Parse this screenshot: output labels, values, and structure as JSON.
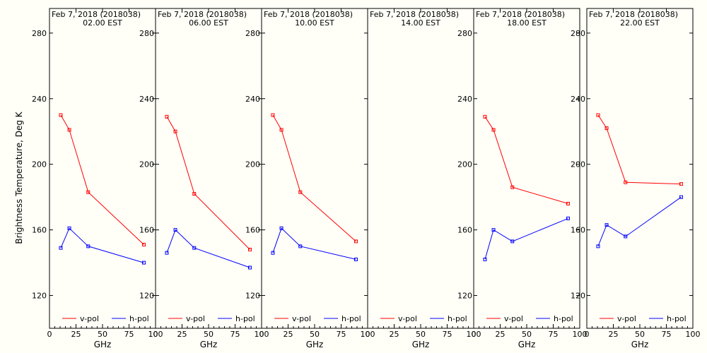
{
  "figure": {
    "ylabel": "Brightness Temperature, Deg K",
    "background": "#fffff8",
    "axis_color": "#000000"
  },
  "series_colors": {
    "v-pol": "#ff0000",
    "h-pol": "#0000ff"
  },
  "chart_data": [
    {
      "type": "line",
      "title": "Feb  7, 2018 (2018038)",
      "subtitle": "02.00 EST",
      "xlabel": "GHz",
      "xlim": [
        0,
        100
      ],
      "ylim": [
        100,
        295
      ],
      "xticks": [
        0,
        25,
        50,
        75,
        100
      ],
      "yticks": [
        120,
        160,
        200,
        240,
        280
      ],
      "ytick_side": "left",
      "legend": "bottom",
      "series": [
        {
          "name": "v-pol",
          "x": [
            10.65,
            18.7,
            36.5,
            89.0
          ],
          "y": [
            230,
            221,
            183,
            151
          ]
        },
        {
          "name": "h-pol",
          "x": [
            10.65,
            18.7,
            36.5,
            89.0
          ],
          "y": [
            149,
            161,
            150,
            140
          ]
        }
      ]
    },
    {
      "type": "line",
      "title": "Feb  7, 2018 (2018038)",
      "subtitle": "06.00 EST",
      "xlabel": "GHz",
      "xlim": [
        0,
        100
      ],
      "ylim": [
        100,
        295
      ],
      "xticks": [
        0,
        25,
        50,
        75,
        100
      ],
      "yticks": [
        120,
        160,
        200,
        240,
        280
      ],
      "ytick_side": "right",
      "legend": "bottom",
      "series": [
        {
          "name": "v-pol",
          "x": [
            10.65,
            18.7,
            36.5,
            89.0
          ],
          "y": [
            229,
            220,
            182,
            148
          ]
        },
        {
          "name": "h-pol",
          "x": [
            10.65,
            18.7,
            36.5,
            89.0
          ],
          "y": [
            146,
            160,
            149,
            137
          ]
        }
      ]
    },
    {
      "type": "line",
      "title": "Feb  7, 2018 (2018038)",
      "subtitle": "10.00 EST",
      "xlabel": "GHz",
      "xlim": [
        0,
        100
      ],
      "ylim": [
        100,
        295
      ],
      "xticks": [
        0,
        25,
        50,
        75,
        100
      ],
      "yticks": [
        120,
        160,
        200,
        240,
        280
      ],
      "ytick_side": "right",
      "legend": "bottom",
      "series": [
        {
          "name": "v-pol",
          "x": [
            10.65,
            18.7,
            36.5,
            89.0
          ],
          "y": [
            230,
            221,
            183,
            153
          ]
        },
        {
          "name": "h-pol",
          "x": [
            10.65,
            18.7,
            36.5,
            89.0
          ],
          "y": [
            146,
            161,
            150,
            142
          ]
        }
      ]
    },
    {
      "type": "line",
      "title": "Feb  7, 2018 (2018038)",
      "subtitle": "14.00 EST",
      "xlabel": "GHz",
      "xlim": [
        0,
        100
      ],
      "ylim": [
        100,
        295
      ],
      "xticks": [
        0,
        25,
        50,
        75,
        100
      ],
      "yticks": [],
      "ytick_side": "none",
      "legend": "bottom",
      "series": [
        {
          "name": "v-pol",
          "x": [],
          "y": []
        },
        {
          "name": "h-pol",
          "x": [],
          "y": []
        }
      ]
    },
    {
      "type": "line",
      "title": "Feb  7, 2018 (2018038)",
      "subtitle": "18.00 EST",
      "xlabel": "GHz",
      "xlim": [
        0,
        100
      ],
      "ylim": [
        100,
        295
      ],
      "xticks": [
        0,
        25,
        50,
        75,
        100
      ],
      "yticks": [
        120,
        160,
        200,
        240,
        280
      ],
      "ytick_side": "right",
      "legend": "bottom",
      "series": [
        {
          "name": "v-pol",
          "x": [
            10.65,
            18.7,
            36.5,
            89.0
          ],
          "y": [
            229,
            221,
            186,
            176
          ]
        },
        {
          "name": "h-pol",
          "x": [
            10.65,
            18.7,
            36.5,
            89.0
          ],
          "y": [
            142,
            160,
            153,
            167
          ]
        }
      ]
    },
    {
      "type": "line",
      "title": "Feb  7, 2018 (2018038)",
      "subtitle": "22.00 EST",
      "xlabel": "GHz",
      "xlim": [
        0,
        100
      ],
      "ylim": [
        100,
        295
      ],
      "xticks": [
        0,
        25,
        50,
        75,
        100
      ],
      "yticks": [
        120,
        160,
        200,
        240,
        280
      ],
      "ytick_side": "right",
      "legend": "bottom",
      "series": [
        {
          "name": "v-pol",
          "x": [
            10.65,
            18.7,
            36.5,
            89.0
          ],
          "y": [
            230,
            222,
            189,
            188
          ]
        },
        {
          "name": "h-pol",
          "x": [
            10.65,
            18.7,
            36.5,
            89.0
          ],
          "y": [
            150,
            163,
            156,
            180
          ]
        }
      ]
    }
  ]
}
